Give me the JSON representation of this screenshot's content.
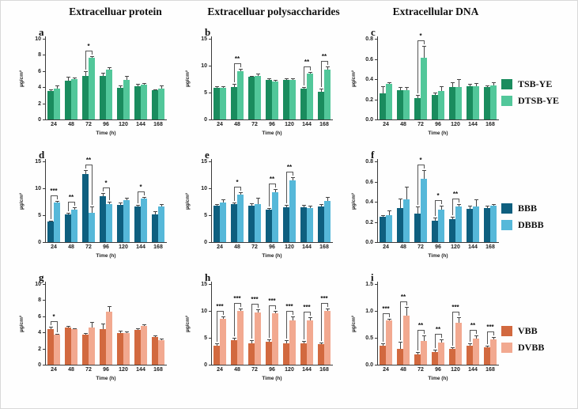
{
  "headers": [
    "Extracelluar protein",
    "Extracelluar polysaccharides",
    "Extracellular DNA"
  ],
  "axis": {
    "x_label": "Time (h)",
    "y_label": "µg/cm²"
  },
  "categories": [
    "24",
    "48",
    "72",
    "96",
    "120",
    "144",
    "168"
  ],
  "legends": [
    {
      "entries": [
        {
          "label": "TSB-YE",
          "color": "#1a8c5e"
        },
        {
          "label": "DTSB-YE",
          "color": "#52c79a"
        }
      ]
    },
    {
      "entries": [
        {
          "label": "BBB",
          "color": "#0e5f7f"
        },
        {
          "label": "DBBB",
          "color": "#56b8d9"
        }
      ]
    },
    {
      "entries": [
        {
          "label": "VBB",
          "color": "#d2693f"
        },
        {
          "label": "DVBB",
          "color": "#f2a990"
        }
      ]
    }
  ],
  "chart_data": [
    {
      "panel": "a",
      "type": "bar",
      "row": 0,
      "col": 0,
      "ylim": [
        0,
        10
      ],
      "yticks": [
        "0",
        "2",
        "4",
        "6",
        "8",
        "10"
      ],
      "categories": [
        "24",
        "48",
        "72",
        "96",
        "120",
        "144",
        "168"
      ],
      "xlabel": "Time (h)",
      "ylabel": "µg/cm²",
      "series": [
        {
          "name": "TSB-YE",
          "color": "#1a8c5e",
          "values": [
            3.5,
            4.8,
            5.4,
            5.4,
            3.9,
            4.1,
            3.6
          ],
          "errors": [
            0.2,
            0.5,
            0.6,
            0.4,
            0.3,
            0.3,
            0.15
          ]
        },
        {
          "name": "DTSB-YE",
          "color": "#52c79a",
          "values": [
            3.8,
            5.0,
            7.6,
            6.2,
            4.9,
            4.3,
            3.8
          ],
          "errors": [
            0.4,
            0.2,
            0.2,
            0.3,
            0.5,
            0.2,
            0.4
          ]
        }
      ],
      "significance": [
        null,
        null,
        "*",
        null,
        null,
        null,
        null
      ]
    },
    {
      "panel": "b",
      "type": "bar",
      "row": 0,
      "col": 1,
      "ylim": [
        0,
        15
      ],
      "yticks": [
        "0",
        "5",
        "10",
        "15"
      ],
      "categories": [
        "24",
        "48",
        "72",
        "96",
        "120",
        "144",
        "168"
      ],
      "xlabel": "Time (h)",
      "ylabel": "µg/cm²",
      "series": [
        {
          "name": "TSB-YE",
          "color": "#1a8c5e",
          "values": [
            5.9,
            6.1,
            7.9,
            7.4,
            7.3,
            5.7,
            5.2
          ],
          "errors": [
            0.3,
            0.5,
            0.25,
            0.3,
            0.4,
            0.3,
            0.5
          ]
        },
        {
          "name": "DTSB-YE",
          "color": "#52c79a",
          "values": [
            5.9,
            8.9,
            8.1,
            7.0,
            7.3,
            8.5,
            9.3
          ],
          "errors": [
            0.35,
            0.5,
            0.4,
            0.35,
            0.3,
            0.35,
            0.5
          ]
        }
      ],
      "significance": [
        null,
        "**",
        null,
        null,
        null,
        "**",
        "**"
      ]
    },
    {
      "panel": "c",
      "type": "bar",
      "row": 0,
      "col": 2,
      "ylim": [
        0,
        0.8
      ],
      "yticks": [
        "0.0",
        "0.2",
        "0.4",
        "0.6",
        "0.8"
      ],
      "categories": [
        "24",
        "48",
        "72",
        "96",
        "120",
        "144",
        "168"
      ],
      "xlabel": "Time (h)",
      "ylabel": "µg/cm²",
      "series": [
        {
          "name": "TSB-YE",
          "color": "#1a8c5e",
          "values": [
            0.26,
            0.29,
            0.21,
            0.24,
            0.32,
            0.33,
            0.32
          ],
          "errors": [
            0.07,
            0.03,
            0.03,
            0.03,
            0.05,
            0.02,
            0.02
          ]
        },
        {
          "name": "DTSB-YE",
          "color": "#52c79a",
          "values": [
            0.35,
            0.29,
            0.61,
            0.28,
            0.32,
            0.33,
            0.34
          ],
          "errors": [
            0.02,
            0.03,
            0.12,
            0.05,
            0.08,
            0.03,
            0.03
          ]
        }
      ],
      "significance": [
        null,
        null,
        "*",
        null,
        null,
        null,
        null
      ]
    },
    {
      "panel": "d",
      "type": "bar",
      "row": 1,
      "col": 0,
      "ylim": [
        0,
        15
      ],
      "yticks": [
        "0",
        "5",
        "10",
        "15"
      ],
      "categories": [
        "24",
        "48",
        "72",
        "96",
        "120",
        "144",
        "168"
      ],
      "xlabel": "Time (h)",
      "ylabel": "µg/cm²",
      "series": [
        {
          "name": "BBB",
          "color": "#0e5f7f",
          "values": [
            3.8,
            5.1,
            12.7,
            8.6,
            6.9,
            6.6,
            5.1
          ],
          "errors": [
            0.2,
            0.3,
            0.7,
            0.5,
            0.4,
            0.3,
            0.7
          ]
        },
        {
          "name": "DBBB",
          "color": "#56b8d9",
          "values": [
            7.4,
            6.1,
            5.5,
            7.1,
            7.8,
            8.1,
            6.6
          ],
          "errors": [
            0.3,
            0.3,
            1.1,
            0.4,
            0.5,
            0.3,
            0.5
          ]
        }
      ],
      "significance": [
        "***",
        "**",
        "**",
        "*",
        null,
        "*",
        null
      ]
    },
    {
      "panel": "e",
      "type": "bar",
      "row": 1,
      "col": 1,
      "ylim": [
        0,
        15
      ],
      "yticks": [
        "0",
        "5",
        "10",
        "15"
      ],
      "categories": [
        "24",
        "48",
        "72",
        "96",
        "120",
        "144",
        "168"
      ],
      "xlabel": "Time (h)",
      "ylabel": "µg/cm²",
      "series": [
        {
          "name": "BBB",
          "color": "#0e5f7f",
          "values": [
            6.7,
            7.0,
            6.7,
            6.0,
            6.5,
            6.5,
            6.6
          ],
          "errors": [
            0.3,
            0.4,
            0.5,
            0.3,
            0.4,
            0.4,
            0.4
          ]
        },
        {
          "name": "DBBB",
          "color": "#56b8d9",
          "values": [
            7.4,
            8.8,
            7.0,
            9.3,
            11.4,
            6.3,
            7.7
          ],
          "errors": [
            0.6,
            0.5,
            1.3,
            0.5,
            0.6,
            0.5,
            0.7
          ]
        }
      ],
      "significance": [
        null,
        "*",
        null,
        "**",
        "**",
        null,
        null
      ]
    },
    {
      "panel": "f",
      "type": "bar",
      "row": 1,
      "col": 2,
      "ylim": [
        0,
        0.8
      ],
      "yticks": [
        "0.0",
        "0.2",
        "0.4",
        "0.6",
        "0.8"
      ],
      "categories": [
        "24",
        "48",
        "72",
        "96",
        "120",
        "144",
        "168"
      ],
      "xlabel": "Time (h)",
      "ylabel": "µg/cm²",
      "series": [
        {
          "name": "BBB",
          "color": "#0e5f7f",
          "values": [
            0.25,
            0.34,
            0.28,
            0.21,
            0.23,
            0.33,
            0.34
          ],
          "errors": [
            0.02,
            0.09,
            0.07,
            0.03,
            0.02,
            0.03,
            0.02
          ]
        },
        {
          "name": "DBBB",
          "color": "#56b8d9",
          "values": [
            0.27,
            0.42,
            0.63,
            0.32,
            0.35,
            0.35,
            0.36
          ],
          "errors": [
            0.04,
            0.13,
            0.08,
            0.04,
            0.03,
            0.07,
            0.02
          ]
        }
      ],
      "significance": [
        null,
        null,
        "*",
        "*",
        "**",
        null,
        null
      ]
    },
    {
      "panel": "g",
      "type": "bar",
      "row": 2,
      "col": 0,
      "ylim": [
        0,
        10
      ],
      "yticks": [
        "0",
        "2",
        "4",
        "6",
        "8",
        "10"
      ],
      "categories": [
        "24",
        "48",
        "72",
        "96",
        "120",
        "144",
        "168"
      ],
      "xlabel": "Time (h)",
      "ylabel": "µg/cm²",
      "series": [
        {
          "name": "VBB",
          "color": "#d2693f",
          "values": [
            4.4,
            4.65,
            3.7,
            4.4,
            3.9,
            4.3,
            3.4
          ],
          "errors": [
            0.3,
            0.15,
            0.2,
            0.7,
            0.3,
            0.2,
            0.2
          ]
        },
        {
          "name": "DVBB",
          "color": "#f2a990",
          "values": [
            3.7,
            4.45,
            4.6,
            6.6,
            3.9,
            4.85,
            3.05
          ],
          "errors": [
            0.15,
            0.1,
            0.7,
            0.7,
            0.25,
            0.15,
            0.15
          ]
        }
      ],
      "significance": [
        "*",
        null,
        null,
        null,
        null,
        null,
        null
      ]
    },
    {
      "panel": "h",
      "type": "bar",
      "row": 2,
      "col": 1,
      "ylim": [
        0,
        15
      ],
      "yticks": [
        "0",
        "5",
        "10",
        "15"
      ],
      "categories": [
        "24",
        "48",
        "72",
        "96",
        "120",
        "144",
        "168"
      ],
      "xlabel": "Time (h)",
      "ylabel": "µg/cm²",
      "series": [
        {
          "name": "VBB",
          "color": "#d2693f",
          "values": [
            3.5,
            4.5,
            4.0,
            4.3,
            4.0,
            4.0,
            3.8
          ],
          "errors": [
            0.4,
            0.5,
            0.5,
            0.4,
            0.5,
            0.4,
            0.3
          ]
        },
        {
          "name": "DVBB",
          "color": "#f2a990",
          "values": [
            8.5,
            10.0,
            9.7,
            9.5,
            8.2,
            8.2,
            10.0
          ],
          "errors": [
            0.5,
            0.4,
            0.6,
            0.5,
            0.7,
            0.6,
            0.5
          ]
        }
      ],
      "significance": [
        "***",
        "***",
        "***",
        "***",
        "***",
        "***",
        "***"
      ]
    },
    {
      "panel": "i",
      "type": "bar",
      "row": 2,
      "col": 2,
      "ylim": [
        0,
        1.5
      ],
      "yticks": [
        "0.0",
        "0.5",
        "1.0",
        "1.5"
      ],
      "categories": [
        "24",
        "48",
        "72",
        "96",
        "120",
        "144",
        "168"
      ],
      "xlabel": "Time (h)",
      "ylabel": "µg/cm²",
      "series": [
        {
          "name": "VBB",
          "color": "#d2693f",
          "values": [
            0.36,
            0.3,
            0.19,
            0.23,
            0.29,
            0.36,
            0.32
          ],
          "errors": [
            0.04,
            0.12,
            0.04,
            0.05,
            0.04,
            0.04,
            0.04
          ]
        },
        {
          "name": "DVBB",
          "color": "#f2a990",
          "values": [
            0.82,
            0.91,
            0.44,
            0.41,
            0.78,
            0.49,
            0.47
          ],
          "errors": [
            0.04,
            0.17,
            0.1,
            0.06,
            0.1,
            0.05,
            0.04
          ]
        }
      ],
      "significance": [
        "***",
        "**",
        "**",
        "**",
        "***",
        "**",
        "***"
      ]
    }
  ]
}
